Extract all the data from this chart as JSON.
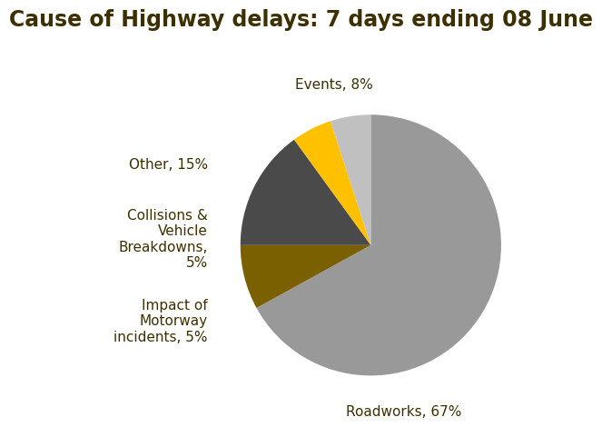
{
  "title": "Cause of Highway delays: 7 days ending 08 June",
  "slices": [
    {
      "label": "Roadworks, 67%",
      "value": 67,
      "color": "#999999"
    },
    {
      "label": "Events, 8%",
      "value": 8,
      "color": "#7a6000"
    },
    {
      "label": "Other, 15%",
      "value": 15,
      "color": "#4a4a4a"
    },
    {
      "label": "Collisions &\nVehicle\nBreakdowns,\n5%",
      "value": 5,
      "color": "#ffc000"
    },
    {
      "label": "Impact of\nMotorway\nincidents, 5%",
      "value": 5,
      "color": "#c0c0c0"
    }
  ],
  "title_fontsize": 17,
  "label_fontsize": 11,
  "background_color": "#ffffff",
  "title_color": "#3d3000",
  "label_color": "#3d3000",
  "startangle": 90
}
